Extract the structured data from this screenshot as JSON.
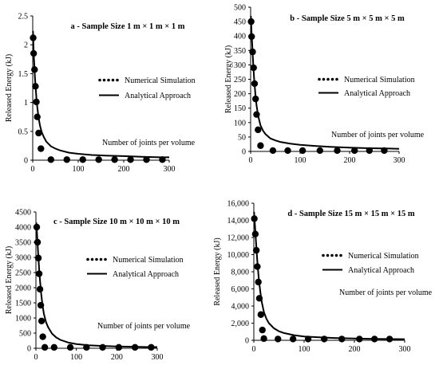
{
  "chart_data": [
    {
      "type": "scatter",
      "title": "a - Sample Size 1 m × 1 m × 1 m",
      "ylabel": "Released Energy (kJ)",
      "xlabel": "",
      "annotation": "Number of joints per volume",
      "xlim": [
        0,
        300
      ],
      "ylim": [
        0,
        2.5
      ],
      "xticks": [
        "0",
        "100",
        "200",
        "300"
      ],
      "yticks": [
        "0",
        "0.5",
        "1",
        "1.5",
        "2",
        "2.5"
      ],
      "legend": [
        "Numerical Simulation",
        "Analytical Approach"
      ],
      "legend_position": "right",
      "series": [
        {
          "name": "Numerical Simulation",
          "kind": "points",
          "x": [
            1,
            2,
            4,
            6,
            8,
            10,
            13,
            18,
            40,
            75,
            110,
            145,
            180,
            215,
            250,
            285
          ],
          "y": [
            2.12,
            1.85,
            1.57,
            1.28,
            1.01,
            0.75,
            0.47,
            0.2,
            0.01,
            0.01,
            0.01,
            0.01,
            0.01,
            0.01,
            0.01,
            0.01
          ]
        },
        {
          "name": "Analytical Approach",
          "kind": "line",
          "x": [
            0.5,
            1,
            2,
            3,
            5,
            8,
            10,
            13,
            16,
            20,
            25,
            30,
            40,
            50,
            60,
            80,
            100,
            130,
            160,
            200,
            240,
            280,
            300
          ],
          "y": [
            2.24,
            2.12,
            1.9,
            1.72,
            1.41,
            1.08,
            0.92,
            0.73,
            0.6,
            0.48,
            0.39,
            0.32,
            0.24,
            0.2,
            0.17,
            0.13,
            0.11,
            0.09,
            0.08,
            0.07,
            0.06,
            0.05,
            0.05
          ]
        }
      ]
    },
    {
      "type": "scatter",
      "title": "b - Sample Size 5 m × 5 m × 5 m",
      "ylabel": "Released Energy (kJ)",
      "xlabel": "",
      "annotation": "Number of joints per volume",
      "xlim": [
        0,
        300
      ],
      "ylim": [
        0,
        500
      ],
      "xticks": [
        "0",
        "100",
        "200",
        "300"
      ],
      "yticks": [
        "0",
        "50",
        "100",
        "150",
        "200",
        "250",
        "300",
        "350",
        "400",
        "450",
        "500"
      ],
      "legend": [
        "Numerical Simulation",
        "Analytical Approach"
      ],
      "legend_position": "right",
      "series": [
        {
          "name": "Numerical Simulation",
          "kind": "points",
          "x": [
            1,
            2,
            4,
            6,
            8,
            10,
            12,
            15,
            20,
            45,
            75,
            105,
            140,
            175,
            210,
            240,
            270
          ],
          "y": [
            450,
            398,
            345,
            290,
            235,
            182,
            128,
            75,
            20,
            3,
            3,
            3,
            3,
            3,
            3,
            3,
            3
          ]
        },
        {
          "name": "Analytical Approach",
          "kind": "line",
          "x": [
            0.5,
            1,
            2,
            3,
            5,
            7,
            10,
            12,
            15,
            20,
            25,
            30,
            40,
            50,
            60,
            80,
            100,
            130,
            160,
            200,
            240,
            280,
            300
          ],
          "y": [
            470,
            450,
            410,
            375,
            310,
            255,
            190,
            160,
            125,
            90,
            72,
            60,
            45,
            38,
            33,
            27,
            23,
            19,
            16,
            13,
            11,
            10,
            9
          ]
        }
      ]
    },
    {
      "type": "scatter",
      "title": "c - Sample Size 10 m × 10 m × 10 m",
      "ylabel": "Released Energy (kJ)",
      "xlabel": "",
      "annotation": "Number of joints per volume",
      "xlim": [
        0,
        300
      ],
      "ylim": [
        0,
        4500
      ],
      "xticks": [
        "0",
        "100",
        "200",
        "300"
      ],
      "yticks": [
        "0",
        "500",
        "1000",
        "1500",
        "2000",
        "2500",
        "3000",
        "3500",
        "4000",
        "4500"
      ],
      "legend": [
        "Numerical Simulation",
        "Analytical Approach"
      ],
      "legend_position": "right",
      "series": [
        {
          "name": "Numerical Simulation",
          "kind": "points",
          "x": [
            2,
            4,
            6,
            8,
            10,
            12,
            14,
            17,
            22,
            45,
            85,
            125,
            165,
            205,
            245,
            285
          ],
          "y": [
            4000,
            3500,
            2980,
            2460,
            1950,
            1420,
            900,
            380,
            30,
            30,
            30,
            30,
            30,
            30,
            30,
            30
          ]
        },
        {
          "name": "Analytical Approach",
          "kind": "line",
          "x": [
            1,
            2,
            4,
            6,
            8,
            10,
            13,
            16,
            20,
            25,
            30,
            40,
            50,
            60,
            80,
            100,
            130,
            160,
            200,
            240,
            280,
            300
          ],
          "y": [
            4150,
            3950,
            3500,
            3050,
            2600,
            2250,
            1800,
            1450,
            1120,
            860,
            700,
            480,
            360,
            280,
            190,
            140,
            100,
            80,
            60,
            50,
            40,
            40
          ]
        }
      ]
    },
    {
      "type": "scatter",
      "title": "d - Sample Size 15 m × 15 m × 15 m",
      "ylabel": "Released Energy (kJ)",
      "xlabel": "",
      "annotation": "Number of joints per volume",
      "xlim": [
        0,
        300
      ],
      "ylim": [
        0,
        16000
      ],
      "xticks": [
        "0",
        "100",
        "200",
        "300"
      ],
      "yticks": [
        "0",
        "2,000",
        "4,000",
        "6,000",
        "8,000",
        "10,000",
        "12,000",
        "14,000",
        "16,000"
      ],
      "legend": [
        "Numerical Simulation",
        "Analytical Approach"
      ],
      "legend_position": "right",
      "series": [
        {
          "name": "Numerical Simulation",
          "kind": "points",
          "x": [
            1,
            3,
            5,
            7,
            9,
            11,
            14,
            17,
            20,
            48,
            78,
            108,
            140,
            175,
            210,
            240,
            270
          ],
          "y": [
            14200,
            12400,
            10500,
            8600,
            6800,
            4900,
            3000,
            1200,
            200,
            150,
            150,
            150,
            150,
            150,
            150,
            150,
            150
          ]
        },
        {
          "name": "Analytical Approach",
          "kind": "line",
          "x": [
            0.5,
            1,
            2,
            4,
            6,
            8,
            10,
            13,
            16,
            20,
            25,
            30,
            40,
            50,
            60,
            80,
            100,
            130,
            160,
            200,
            240,
            280,
            300
          ],
          "y": [
            15000,
            14400,
            13600,
            11800,
            10000,
            8500,
            7100,
            5600,
            4400,
            3300,
            2500,
            2000,
            1400,
            1050,
            850,
            600,
            450,
            340,
            270,
            210,
            170,
            140,
            130
          ]
        }
      ]
    }
  ]
}
